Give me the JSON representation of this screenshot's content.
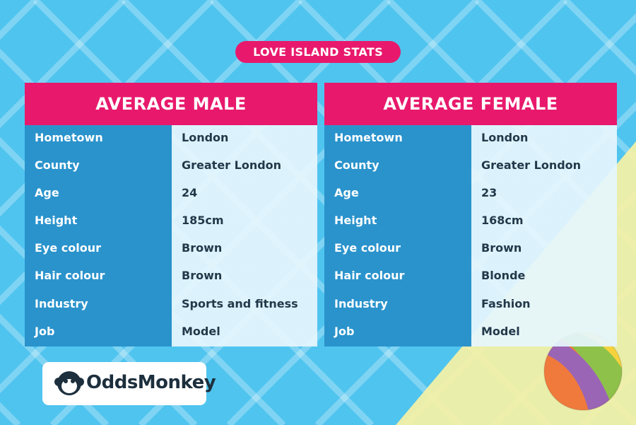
{
  "title": "LOVE ISLAND STATS",
  "tables": [
    {
      "header": "AVERAGE MALE",
      "rows": [
        [
          "Hometown",
          "London"
        ],
        [
          "County",
          "Greater London"
        ],
        [
          "Age",
          "24"
        ],
        [
          "Height",
          "185cm"
        ],
        [
          "Eye colour",
          "Brown"
        ],
        [
          "Hair colour",
          "Brown"
        ],
        [
          "Industry",
          "Sports and fitness"
        ],
        [
          "Job",
          "Model"
        ]
      ]
    },
    {
      "header": "AVERAGE FEMALE",
      "rows": [
        [
          "Hometown",
          "London"
        ],
        [
          "County",
          "Greater London"
        ],
        [
          "Age",
          "23"
        ],
        [
          "Height",
          "168cm"
        ],
        [
          "Eye colour",
          "Brown"
        ],
        [
          "Hair colour",
          "Blonde"
        ],
        [
          "Industry",
          "Fashion"
        ],
        [
          "Job",
          "Model"
        ]
      ]
    }
  ],
  "logo": "OddsMonkey"
}
